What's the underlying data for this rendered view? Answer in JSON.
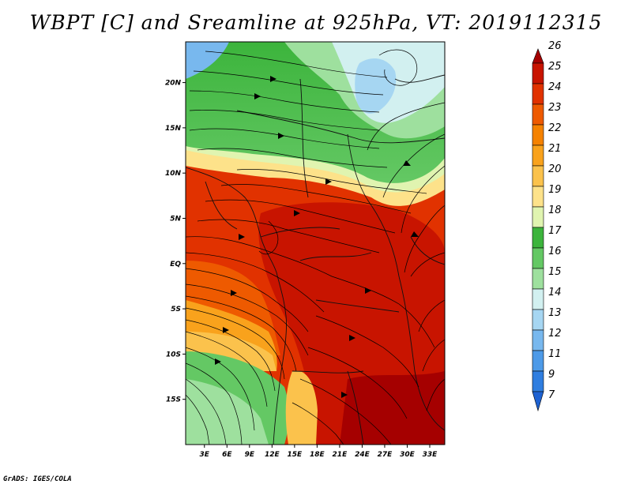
{
  "title": "WBPT [C] and Sreamline at 925hPa, VT: 2019112315",
  "credit": "GrADS: IGES/COLA",
  "map": {
    "lon_ticks": [
      "3E",
      "6E",
      "9E",
      "12E",
      "15E",
      "18E",
      "21E",
      "24E",
      "27E",
      "30E",
      "33E"
    ],
    "lon_values": [
      3,
      6,
      9,
      12,
      15,
      18,
      21,
      24,
      27,
      30,
      33
    ],
    "lat_ticks": [
      "20N",
      "15N",
      "10N",
      "5N",
      "EQ",
      "5S",
      "10S",
      "15S"
    ],
    "lat_values": [
      20,
      15,
      10,
      5,
      0,
      -5,
      -10,
      -15
    ],
    "lon_range": [
      0.5,
      35
    ],
    "lat_range": [
      -20,
      24.5
    ]
  },
  "colorbar": {
    "labels": [
      "26",
      "25",
      "24",
      "23",
      "22",
      "21",
      "20",
      "19",
      "18",
      "17",
      "16",
      "15",
      "14",
      "13",
      "12",
      "11",
      "9",
      "7"
    ],
    "colors": [
      "#a50000",
      "#c81400",
      "#e13200",
      "#ee5a00",
      "#f58200",
      "#f9a21c",
      "#fbc24c",
      "#fde28a",
      "#e0f4b0",
      "#3cb43c",
      "#64c864",
      "#9ee09e",
      "#d2f0f0",
      "#a6d6f2",
      "#78b8ee",
      "#4d9ae8",
      "#2f7ee0",
      "#1e62d2"
    ]
  }
}
